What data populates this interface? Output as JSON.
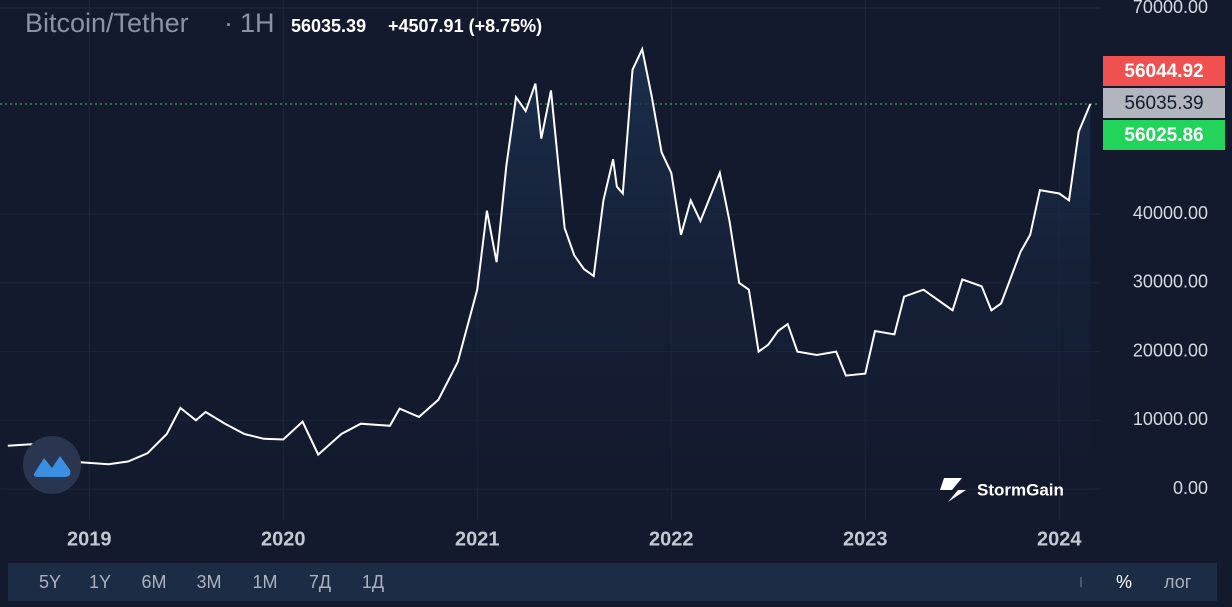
{
  "chart_data": {
    "type": "line",
    "title": "Bitcoin/Tether",
    "interval": "1H",
    "last_price": "56035.39",
    "change": "+4507.91 (+8.75%)",
    "color": "#ffffff",
    "x": [
      2018.58,
      2018.7,
      2018.85,
      2018.9,
      2019.0,
      2019.1,
      2019.2,
      2019.3,
      2019.4,
      2019.47,
      2019.55,
      2019.6,
      2019.7,
      2019.8,
      2019.9,
      2020.0,
      2020.1,
      2020.18,
      2020.3,
      2020.4,
      2020.55,
      2020.6,
      2020.7,
      2020.8,
      2020.9,
      2021.0,
      2021.05,
      2021.1,
      2021.15,
      2021.2,
      2021.25,
      2021.3,
      2021.33,
      2021.38,
      2021.45,
      2021.5,
      2021.55,
      2021.6,
      2021.65,
      2021.7,
      2021.72,
      2021.75,
      2021.8,
      2021.85,
      2021.9,
      2021.95,
      2022.0,
      2022.05,
      2022.1,
      2022.15,
      2022.25,
      2022.3,
      2022.35,
      2022.4,
      2022.45,
      2022.5,
      2022.55,
      2022.6,
      2022.65,
      2022.75,
      2022.85,
      2022.9,
      2023.0,
      2023.05,
      2023.15,
      2023.2,
      2023.3,
      2023.4,
      2023.45,
      2023.5,
      2023.6,
      2023.65,
      2023.7,
      2023.8,
      2023.85,
      2023.9,
      2024.0,
      2024.05,
      2024.1,
      2024.16
    ],
    "values": [
      6300,
      6500,
      6300,
      4000,
      3800,
      3600,
      4000,
      5200,
      8000,
      11800,
      10000,
      11200,
      9500,
      8000,
      7300,
      7200,
      9800,
      5000,
      8000,
      9500,
      9200,
      11700,
      10500,
      13000,
      18500,
      29000,
      40500,
      33000,
      47000,
      57000,
      55000,
      59000,
      51000,
      58000,
      38000,
      34000,
      32000,
      31000,
      42000,
      48000,
      44000,
      43000,
      61000,
      64000,
      57000,
      49000,
      46000,
      37000,
      42000,
      39000,
      46000,
      39000,
      30000,
      29000,
      20000,
      21000,
      23000,
      24000,
      20000,
      19500,
      20000,
      16500,
      16800,
      23000,
      22500,
      28000,
      29000,
      27000,
      26000,
      30500,
      29500,
      26000,
      27000,
      34500,
      37000,
      43500,
      43000,
      42000,
      52000,
      56035.39
    ],
    "xlim": [
      2018.54,
      2024.21
    ],
    "xticks": [
      2019,
      2020,
      2021,
      2022,
      2023,
      2024
    ],
    "ylim": [
      0,
      70000
    ],
    "yticks": [
      {
        "value": 0,
        "label": "0.00"
      },
      {
        "value": 10000,
        "label": "10000.00"
      },
      {
        "value": 20000,
        "label": "20000.00"
      },
      {
        "value": 30000,
        "label": "30000.00"
      },
      {
        "value": 40000,
        "label": "40000.00"
      },
      {
        "value": 70000,
        "label": "70000.00"
      }
    ],
    "grid": true,
    "price_tags": [
      {
        "value": 56044.92,
        "label": "56044.92",
        "color": "#f0504f"
      },
      {
        "value": 56035.39,
        "label": "56035.39",
        "color": "#b2b5be"
      },
      {
        "value": 56025.86,
        "label": "56025.86",
        "color": "#22d45a"
      }
    ]
  },
  "brand": "StormGain",
  "toolbar": {
    "ranges": [
      "5Y",
      "1Y",
      "6M",
      "3M",
      "1M",
      "7Д",
      "1Д"
    ],
    "percent": "%",
    "log": "лог"
  }
}
